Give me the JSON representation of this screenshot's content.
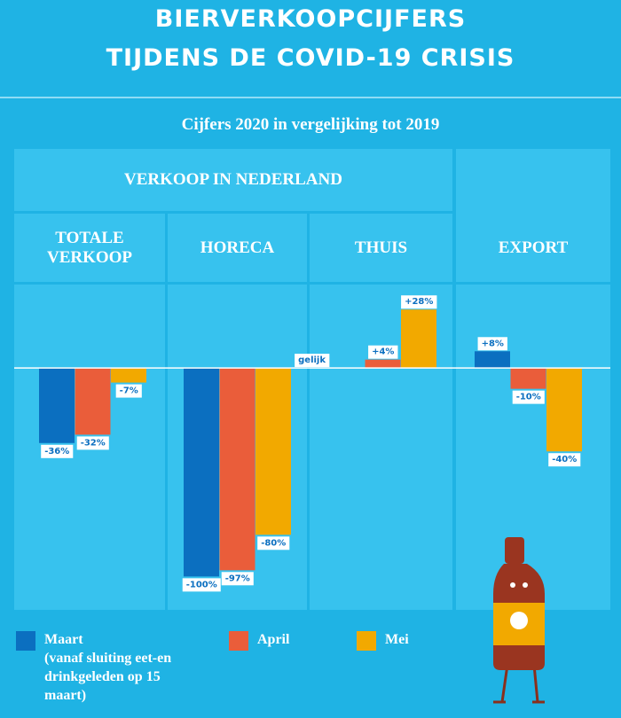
{
  "chart_data": {
    "type": "bar",
    "title": [
      "BIERVERKOOPCIJFERS",
      "TIJDENS DE COVID-19 CRISIS"
    ],
    "subtitle": "Cijfers 2020 in vergelijking tot 2019",
    "group_label": "VERKOOP IN NEDERLAND",
    "categories": [
      "TOTALE VERKOOP",
      "HORECA",
      "THUIS",
      "EXPORT"
    ],
    "series": [
      {
        "name": "Maart",
        "note": "(vanaf sluiting eet-en drinkgeleden op 15 maart)",
        "color": "#0b6fc0",
        "values": [
          -36,
          -100,
          0,
          8
        ],
        "value_labels": [
          "-36%",
          "-100%",
          "gelijk",
          "+8%"
        ]
      },
      {
        "name": "April",
        "color": "#ea5d3a",
        "values": [
          -32,
          -97,
          4,
          -10
        ],
        "value_labels": [
          "-32%",
          "-97%",
          "+4%",
          "-10%"
        ]
      },
      {
        "name": "Mei",
        "color": "#f2a900",
        "values": [
          -7,
          -80,
          28,
          -40
        ],
        "value_labels": [
          "-7%",
          "-80%",
          "+28%",
          "-40%"
        ]
      }
    ],
    "ylim": [
      -116,
      40
    ]
  }
}
